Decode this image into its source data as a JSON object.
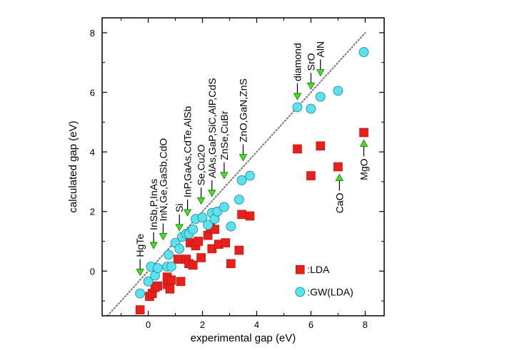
{
  "chart_data": {
    "type": "scatter",
    "xlabel": "experimental gap (eV)",
    "ylabel": "calculated gap (eV)",
    "xlim": [
      -1.7,
      8.7
    ],
    "ylim": [
      -1.5,
      8.5
    ],
    "xticks": [
      0,
      2,
      4,
      6,
      8
    ],
    "yticks": [
      0,
      2,
      4,
      6,
      8
    ],
    "grid": false,
    "legend_position": "bottom-right",
    "reference_line": {
      "style": "dotted",
      "x": [
        -1.5,
        8.0
      ],
      "y": [
        -1.5,
        8.0
      ]
    },
    "series": [
      {
        "name": ":LDA",
        "marker": "square",
        "color": "#e8201c",
        "points": [
          [
            -0.3,
            -1.3
          ],
          [
            0.05,
            -0.85
          ],
          [
            0.15,
            -0.75
          ],
          [
            0.25,
            -0.55
          ],
          [
            0.35,
            -0.5
          ],
          [
            0.7,
            -0.2
          ],
          [
            0.7,
            -0.45
          ],
          [
            0.85,
            -0.3
          ],
          [
            0.8,
            -0.6
          ],
          [
            1.1,
            0.4
          ],
          [
            1.2,
            -0.35
          ],
          [
            1.4,
            0.4
          ],
          [
            1.5,
            0.25
          ],
          [
            1.55,
            0.95
          ],
          [
            1.65,
            0.2
          ],
          [
            1.75,
            0.85
          ],
          [
            1.85,
            1.0
          ],
          [
            1.95,
            0.45
          ],
          [
            2.2,
            1.2
          ],
          [
            2.3,
            1.45
          ],
          [
            2.35,
            0.75
          ],
          [
            2.45,
            1.4
          ],
          [
            2.6,
            0.9
          ],
          [
            2.85,
            0.95
          ],
          [
            3.05,
            0.25
          ],
          [
            3.35,
            0.7
          ],
          [
            3.45,
            1.9
          ],
          [
            3.75,
            1.85
          ],
          [
            5.5,
            4.1
          ],
          [
            6.0,
            3.2
          ],
          [
            6.35,
            4.2
          ],
          [
            7.0,
            3.5
          ],
          [
            7.95,
            4.65
          ]
        ]
      },
      {
        "name": ":GW(LDA)",
        "marker": "circle",
        "color": "#5ce1ee",
        "points": [
          [
            -0.3,
            -0.75
          ],
          [
            0.0,
            -0.35
          ],
          [
            0.1,
            0.15
          ],
          [
            0.25,
            -0.15
          ],
          [
            0.35,
            0.1
          ],
          [
            0.7,
            0.15
          ],
          [
            0.75,
            0.55
          ],
          [
            0.85,
            0.15
          ],
          [
            1.0,
            0.95
          ],
          [
            1.15,
            0.75
          ],
          [
            1.25,
            1.15
          ],
          [
            1.4,
            1.25
          ],
          [
            1.5,
            1.25
          ],
          [
            1.65,
            1.4
          ],
          [
            1.75,
            1.75
          ],
          [
            2.0,
            1.8
          ],
          [
            2.2,
            1.55
          ],
          [
            2.35,
            1.95
          ],
          [
            2.45,
            1.75
          ],
          [
            2.55,
            2.0
          ],
          [
            2.8,
            2.15
          ],
          [
            3.05,
            1.5
          ],
          [
            3.35,
            2.4
          ],
          [
            3.45,
            3.05
          ],
          [
            3.75,
            3.2
          ],
          [
            5.5,
            5.5
          ],
          [
            6.0,
            5.45
          ],
          [
            6.35,
            5.85
          ],
          [
            7.0,
            6.05
          ],
          [
            7.95,
            7.35
          ]
        ]
      }
    ],
    "annotations": [
      {
        "text": "HgTe",
        "arrow_x": -0.3,
        "arrow_tip_y": -0.15,
        "arrow_dir": "down"
      },
      {
        "text": "InSb,P,InAs",
        "arrow_x": 0.2,
        "arrow_tip_y": 0.75,
        "arrow_dir": "down"
      },
      {
        "text": "InN,Ge,GaSb,CdO",
        "arrow_x": 0.55,
        "arrow_tip_y": 1.05,
        "arrow_dir": "down"
      },
      {
        "text": "Si",
        "arrow_x": 1.15,
        "arrow_tip_y": 1.35,
        "arrow_dir": "down"
      },
      {
        "text": "InP,GaAs,CdTe,AlSb",
        "arrow_x": 1.45,
        "arrow_tip_y": 1.85,
        "arrow_dir": "down"
      },
      {
        "text": "Se,Cu2O",
        "arrow_x": 1.95,
        "arrow_tip_y": 2.25,
        "arrow_dir": "down"
      },
      {
        "text": "AlAs,GaP,SiC,AlP,CdS",
        "arrow_x": 2.35,
        "arrow_tip_y": 2.5,
        "arrow_dir": "down"
      },
      {
        "text": "ZnSe,CuBr",
        "arrow_x": 2.8,
        "arrow_tip_y": 3.1,
        "arrow_dir": "down"
      },
      {
        "text": "ZnO,GaN,ZnS",
        "arrow_x": 3.5,
        "arrow_tip_y": 3.7,
        "arrow_dir": "down"
      },
      {
        "text": "diamond",
        "arrow_x": 5.5,
        "arrow_tip_y": 5.75,
        "arrow_dir": "down"
      },
      {
        "text": "SrO",
        "arrow_x": 6.0,
        "arrow_tip_y": 6.1,
        "arrow_dir": "down"
      },
      {
        "text": "AlN",
        "arrow_x": 6.35,
        "arrow_tip_y": 6.55,
        "arrow_dir": "down"
      },
      {
        "text": "CaO",
        "arrow_x": 7.05,
        "arrow_tip_y": 3.25,
        "arrow_dir": "up"
      },
      {
        "text": "MgO",
        "arrow_x": 7.95,
        "arrow_tip_y": 4.4,
        "arrow_dir": "up"
      }
    ]
  },
  "colors": {
    "axis": "#000000",
    "reference_line": "#777777",
    "arrow_fill": "#3ee61e",
    "arrow_stroke": "#1d6a12",
    "marker_stroke": "#333333"
  }
}
